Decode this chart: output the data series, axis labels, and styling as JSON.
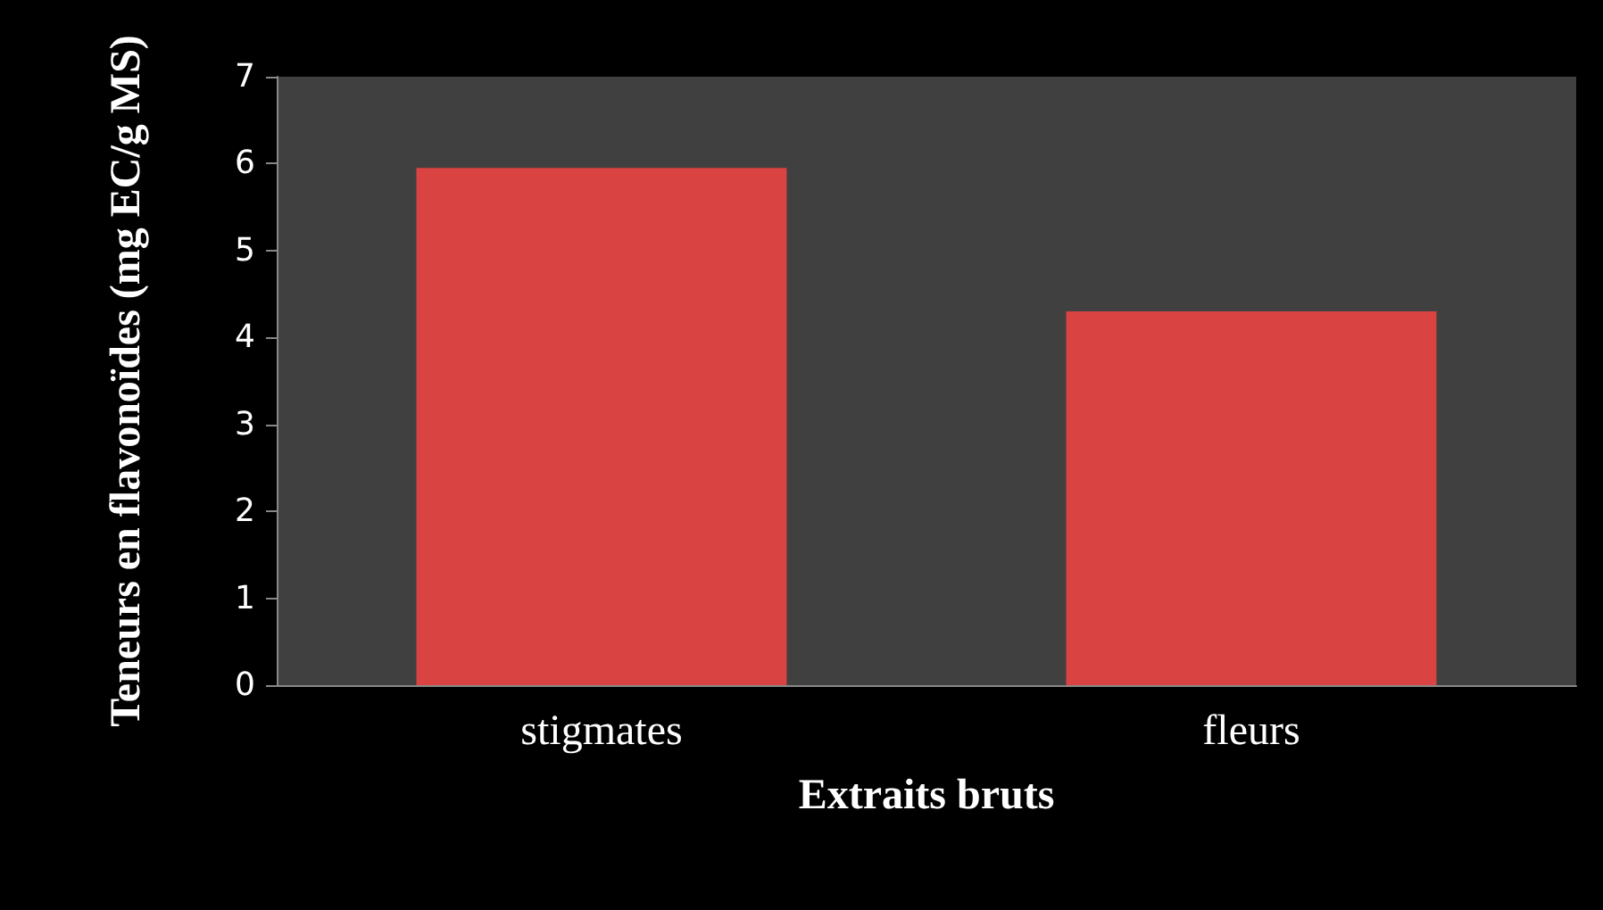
{
  "chart_data": {
    "type": "bar",
    "xlabel": "Extraits bruts",
    "ylabel": "Teneurs en flavonoïdes (mg EC/g MS)",
    "categories": [
      "stigmates",
      "fleurs"
    ],
    "values": [
      5.95,
      4.3
    ],
    "color": "#d94442",
    "ylim": [
      0,
      7
    ],
    "yticks": [
      0,
      1,
      2,
      3,
      4,
      5,
      6,
      7
    ],
    "grid": false
  }
}
